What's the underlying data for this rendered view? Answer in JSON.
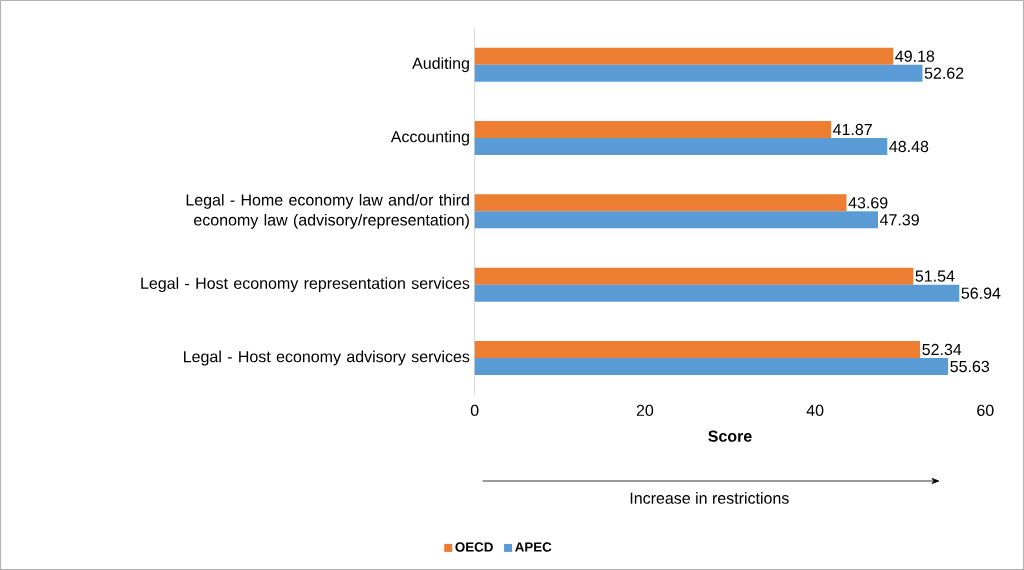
{
  "chart_data": {
    "type": "bar",
    "orientation": "horizontal",
    "xlabel": "Score",
    "categories": [
      "Auditing",
      "Accounting",
      "Legal - Home economy law and/or third economy law (advisory/representation)",
      "Legal - Host economy representation services",
      "Legal - Host economy advisory services"
    ],
    "series": [
      {
        "name": "OECD",
        "color": "#ed7d31",
        "values": [
          49.18,
          41.87,
          43.69,
          51.54,
          52.34
        ]
      },
      {
        "name": "APEC",
        "color": "#5b9bd5",
        "values": [
          52.62,
          48.48,
          47.39,
          56.94,
          55.63
        ]
      }
    ],
    "xlim": [
      0,
      60
    ],
    "xticks": [
      0,
      20,
      40,
      60
    ],
    "data_labels": true,
    "legend": "bottom",
    "grid": false,
    "annotations": [
      "Increase in restrictions"
    ]
  }
}
